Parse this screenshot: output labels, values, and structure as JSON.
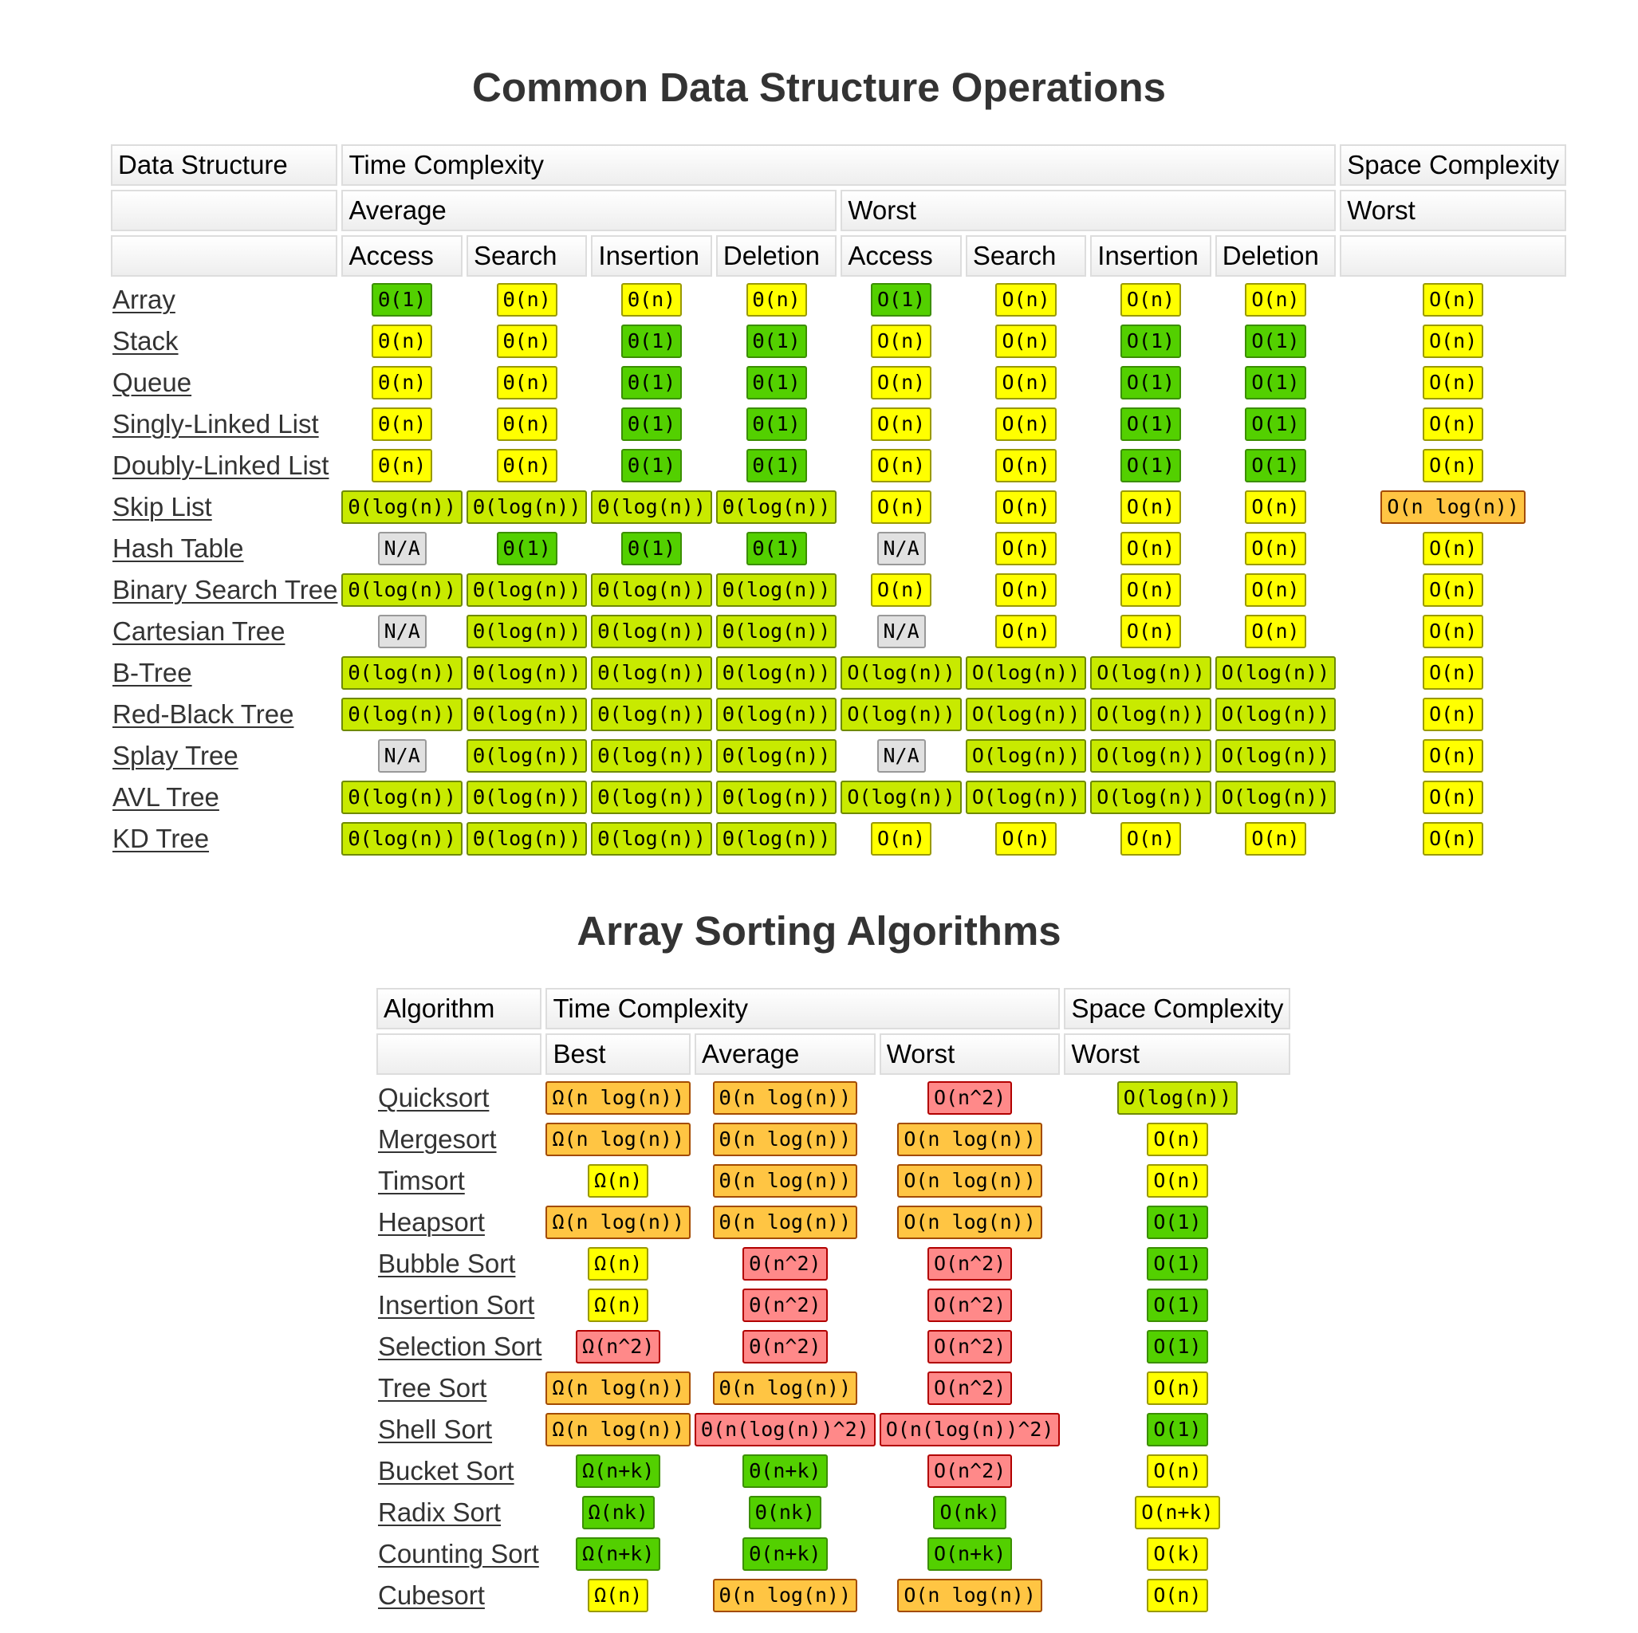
{
  "colors": {
    "gray": "#e1e1e1",
    "green": "#53d000",
    "yellow_green": "#c8ea00",
    "yellow": "#ffff00",
    "orange": "#ffc543",
    "red": "#ff8989"
  },
  "ds": {
    "title": "Common Data Structure Operations",
    "headers": {
      "data_structure": "Data Structure",
      "time_complexity": "Time Complexity",
      "space_complexity": "Space Complexity",
      "average": "Average",
      "worst": "Worst",
      "space_worst": "Worst",
      "access": "Access",
      "search": "Search",
      "insertion": "Insertion",
      "deletion": "Deletion"
    },
    "rows": [
      {
        "name": "Array",
        "cells": [
          [
            "Θ(1)",
            "green"
          ],
          [
            "Θ(n)",
            "yellow"
          ],
          [
            "Θ(n)",
            "yellow"
          ],
          [
            "Θ(n)",
            "yellow"
          ],
          [
            "O(1)",
            "green"
          ],
          [
            "O(n)",
            "yellow"
          ],
          [
            "O(n)",
            "yellow"
          ],
          [
            "O(n)",
            "yellow"
          ],
          [
            "O(n)",
            "yellow"
          ]
        ]
      },
      {
        "name": "Stack",
        "cells": [
          [
            "Θ(n)",
            "yellow"
          ],
          [
            "Θ(n)",
            "yellow"
          ],
          [
            "Θ(1)",
            "green"
          ],
          [
            "Θ(1)",
            "green"
          ],
          [
            "O(n)",
            "yellow"
          ],
          [
            "O(n)",
            "yellow"
          ],
          [
            "O(1)",
            "green"
          ],
          [
            "O(1)",
            "green"
          ],
          [
            "O(n)",
            "yellow"
          ]
        ]
      },
      {
        "name": "Queue",
        "cells": [
          [
            "Θ(n)",
            "yellow"
          ],
          [
            "Θ(n)",
            "yellow"
          ],
          [
            "Θ(1)",
            "green"
          ],
          [
            "Θ(1)",
            "green"
          ],
          [
            "O(n)",
            "yellow"
          ],
          [
            "O(n)",
            "yellow"
          ],
          [
            "O(1)",
            "green"
          ],
          [
            "O(1)",
            "green"
          ],
          [
            "O(n)",
            "yellow"
          ]
        ]
      },
      {
        "name": "Singly-Linked List",
        "cells": [
          [
            "Θ(n)",
            "yellow"
          ],
          [
            "Θ(n)",
            "yellow"
          ],
          [
            "Θ(1)",
            "green"
          ],
          [
            "Θ(1)",
            "green"
          ],
          [
            "O(n)",
            "yellow"
          ],
          [
            "O(n)",
            "yellow"
          ],
          [
            "O(1)",
            "green"
          ],
          [
            "O(1)",
            "green"
          ],
          [
            "O(n)",
            "yellow"
          ]
        ]
      },
      {
        "name": "Doubly-Linked List",
        "cells": [
          [
            "Θ(n)",
            "yellow"
          ],
          [
            "Θ(n)",
            "yellow"
          ],
          [
            "Θ(1)",
            "green"
          ],
          [
            "Θ(1)",
            "green"
          ],
          [
            "O(n)",
            "yellow"
          ],
          [
            "O(n)",
            "yellow"
          ],
          [
            "O(1)",
            "green"
          ],
          [
            "O(1)",
            "green"
          ],
          [
            "O(n)",
            "yellow"
          ]
        ]
      },
      {
        "name": "Skip List",
        "cells": [
          [
            "Θ(log(n))",
            "yg"
          ],
          [
            "Θ(log(n))",
            "yg"
          ],
          [
            "Θ(log(n))",
            "yg"
          ],
          [
            "Θ(log(n))",
            "yg"
          ],
          [
            "O(n)",
            "yellow"
          ],
          [
            "O(n)",
            "yellow"
          ],
          [
            "O(n)",
            "yellow"
          ],
          [
            "O(n)",
            "yellow"
          ],
          [
            "O(n log(n))",
            "orange"
          ]
        ]
      },
      {
        "name": "Hash Table",
        "cells": [
          [
            "N/A",
            "gray"
          ],
          [
            "Θ(1)",
            "green"
          ],
          [
            "Θ(1)",
            "green"
          ],
          [
            "Θ(1)",
            "green"
          ],
          [
            "N/A",
            "gray"
          ],
          [
            "O(n)",
            "yellow"
          ],
          [
            "O(n)",
            "yellow"
          ],
          [
            "O(n)",
            "yellow"
          ],
          [
            "O(n)",
            "yellow"
          ]
        ]
      },
      {
        "name": "Binary Search Tree",
        "cells": [
          [
            "Θ(log(n))",
            "yg"
          ],
          [
            "Θ(log(n))",
            "yg"
          ],
          [
            "Θ(log(n))",
            "yg"
          ],
          [
            "Θ(log(n))",
            "yg"
          ],
          [
            "O(n)",
            "yellow"
          ],
          [
            "O(n)",
            "yellow"
          ],
          [
            "O(n)",
            "yellow"
          ],
          [
            "O(n)",
            "yellow"
          ],
          [
            "O(n)",
            "yellow"
          ]
        ]
      },
      {
        "name": "Cartesian Tree",
        "cells": [
          [
            "N/A",
            "gray"
          ],
          [
            "Θ(log(n))",
            "yg"
          ],
          [
            "Θ(log(n))",
            "yg"
          ],
          [
            "Θ(log(n))",
            "yg"
          ],
          [
            "N/A",
            "gray"
          ],
          [
            "O(n)",
            "yellow"
          ],
          [
            "O(n)",
            "yellow"
          ],
          [
            "O(n)",
            "yellow"
          ],
          [
            "O(n)",
            "yellow"
          ]
        ]
      },
      {
        "name": "B-Tree",
        "cells": [
          [
            "Θ(log(n))",
            "yg"
          ],
          [
            "Θ(log(n))",
            "yg"
          ],
          [
            "Θ(log(n))",
            "yg"
          ],
          [
            "Θ(log(n))",
            "yg"
          ],
          [
            "O(log(n))",
            "yg"
          ],
          [
            "O(log(n))",
            "yg"
          ],
          [
            "O(log(n))",
            "yg"
          ],
          [
            "O(log(n))",
            "yg"
          ],
          [
            "O(n)",
            "yellow"
          ]
        ]
      },
      {
        "name": "Red-Black Tree",
        "cells": [
          [
            "Θ(log(n))",
            "yg"
          ],
          [
            "Θ(log(n))",
            "yg"
          ],
          [
            "Θ(log(n))",
            "yg"
          ],
          [
            "Θ(log(n))",
            "yg"
          ],
          [
            "O(log(n))",
            "yg"
          ],
          [
            "O(log(n))",
            "yg"
          ],
          [
            "O(log(n))",
            "yg"
          ],
          [
            "O(log(n))",
            "yg"
          ],
          [
            "O(n)",
            "yellow"
          ]
        ]
      },
      {
        "name": "Splay Tree",
        "cells": [
          [
            "N/A",
            "gray"
          ],
          [
            "Θ(log(n))",
            "yg"
          ],
          [
            "Θ(log(n))",
            "yg"
          ],
          [
            "Θ(log(n))",
            "yg"
          ],
          [
            "N/A",
            "gray"
          ],
          [
            "O(log(n))",
            "yg"
          ],
          [
            "O(log(n))",
            "yg"
          ],
          [
            "O(log(n))",
            "yg"
          ],
          [
            "O(n)",
            "yellow"
          ]
        ]
      },
      {
        "name": "AVL Tree",
        "cells": [
          [
            "Θ(log(n))",
            "yg"
          ],
          [
            "Θ(log(n))",
            "yg"
          ],
          [
            "Θ(log(n))",
            "yg"
          ],
          [
            "Θ(log(n))",
            "yg"
          ],
          [
            "O(log(n))",
            "yg"
          ],
          [
            "O(log(n))",
            "yg"
          ],
          [
            "O(log(n))",
            "yg"
          ],
          [
            "O(log(n))",
            "yg"
          ],
          [
            "O(n)",
            "yellow"
          ]
        ]
      },
      {
        "name": "KD Tree",
        "cells": [
          [
            "Θ(log(n))",
            "yg"
          ],
          [
            "Θ(log(n))",
            "yg"
          ],
          [
            "Θ(log(n))",
            "yg"
          ],
          [
            "Θ(log(n))",
            "yg"
          ],
          [
            "O(n)",
            "yellow"
          ],
          [
            "O(n)",
            "yellow"
          ],
          [
            "O(n)",
            "yellow"
          ],
          [
            "O(n)",
            "yellow"
          ],
          [
            "O(n)",
            "yellow"
          ]
        ]
      }
    ]
  },
  "sort": {
    "title": "Array Sorting Algorithms",
    "headers": {
      "algorithm": "Algorithm",
      "time_complexity": "Time Complexity",
      "space_complexity": "Space Complexity",
      "best": "Best",
      "average": "Average",
      "worst": "Worst",
      "space_worst": "Worst"
    },
    "rows": [
      {
        "name": "Quicksort",
        "cells": [
          [
            "Ω(n log(n))",
            "orange"
          ],
          [
            "Θ(n log(n))",
            "orange"
          ],
          [
            "O(n^2)",
            "red"
          ],
          [
            "O(log(n))",
            "yg"
          ]
        ]
      },
      {
        "name": "Mergesort",
        "cells": [
          [
            "Ω(n log(n))",
            "orange"
          ],
          [
            "Θ(n log(n))",
            "orange"
          ],
          [
            "O(n log(n))",
            "orange"
          ],
          [
            "O(n)",
            "yellow"
          ]
        ]
      },
      {
        "name": "Timsort",
        "cells": [
          [
            "Ω(n)",
            "yellow"
          ],
          [
            "Θ(n log(n))",
            "orange"
          ],
          [
            "O(n log(n))",
            "orange"
          ],
          [
            "O(n)",
            "yellow"
          ]
        ]
      },
      {
        "name": "Heapsort",
        "cells": [
          [
            "Ω(n log(n))",
            "orange"
          ],
          [
            "Θ(n log(n))",
            "orange"
          ],
          [
            "O(n log(n))",
            "orange"
          ],
          [
            "O(1)",
            "green"
          ]
        ]
      },
      {
        "name": "Bubble Sort",
        "cells": [
          [
            "Ω(n)",
            "yellow"
          ],
          [
            "Θ(n^2)",
            "red"
          ],
          [
            "O(n^2)",
            "red"
          ],
          [
            "O(1)",
            "green"
          ]
        ]
      },
      {
        "name": "Insertion Sort",
        "cells": [
          [
            "Ω(n)",
            "yellow"
          ],
          [
            "Θ(n^2)",
            "red"
          ],
          [
            "O(n^2)",
            "red"
          ],
          [
            "O(1)",
            "green"
          ]
        ]
      },
      {
        "name": "Selection Sort",
        "cells": [
          [
            "Ω(n^2)",
            "red"
          ],
          [
            "Θ(n^2)",
            "red"
          ],
          [
            "O(n^2)",
            "red"
          ],
          [
            "O(1)",
            "green"
          ]
        ]
      },
      {
        "name": "Tree Sort",
        "cells": [
          [
            "Ω(n log(n))",
            "orange"
          ],
          [
            "Θ(n log(n))",
            "orange"
          ],
          [
            "O(n^2)",
            "red"
          ],
          [
            "O(n)",
            "yellow"
          ]
        ]
      },
      {
        "name": "Shell Sort",
        "cells": [
          [
            "Ω(n log(n))",
            "orange"
          ],
          [
            "Θ(n(log(n))^2)",
            "red"
          ],
          [
            "O(n(log(n))^2)",
            "red"
          ],
          [
            "O(1)",
            "green"
          ]
        ]
      },
      {
        "name": "Bucket Sort",
        "cells": [
          [
            "Ω(n+k)",
            "green"
          ],
          [
            "Θ(n+k)",
            "green"
          ],
          [
            "O(n^2)",
            "red"
          ],
          [
            "O(n)",
            "yellow"
          ]
        ]
      },
      {
        "name": "Radix Sort",
        "cells": [
          [
            "Ω(nk)",
            "green"
          ],
          [
            "Θ(nk)",
            "green"
          ],
          [
            "O(nk)",
            "green"
          ],
          [
            "O(n+k)",
            "yellow"
          ]
        ]
      },
      {
        "name": "Counting Sort",
        "cells": [
          [
            "Ω(n+k)",
            "green"
          ],
          [
            "Θ(n+k)",
            "green"
          ],
          [
            "O(n+k)",
            "green"
          ],
          [
            "O(k)",
            "yellow"
          ]
        ]
      },
      {
        "name": "Cubesort",
        "cells": [
          [
            "Ω(n)",
            "yellow"
          ],
          [
            "Θ(n log(n))",
            "orange"
          ],
          [
            "O(n log(n))",
            "orange"
          ],
          [
            "O(n)",
            "yellow"
          ]
        ]
      }
    ]
  }
}
